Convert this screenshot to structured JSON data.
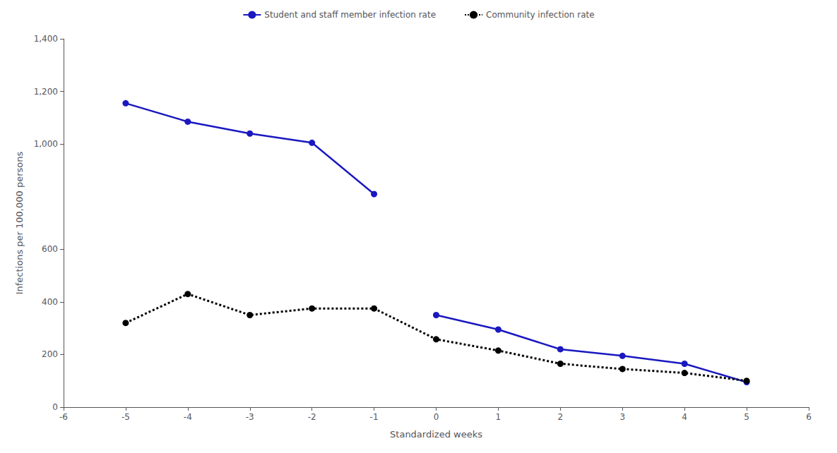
{
  "chart_data": {
    "type": "line",
    "xlabel": "Standardized weeks",
    "ylabel": "Infections per 100,000 persons",
    "series": [
      {
        "name": "Student and staff member infection rate",
        "color": "#1a18c0",
        "line_style": "solid",
        "marker": "circle",
        "x": [
          -5,
          -4,
          -3,
          -2,
          -1
        ],
        "values": [
          1155,
          1085,
          1040,
          1005,
          810
        ]
      },
      {
        "name": "Student and staff member infection rate",
        "color": "#1a18c0",
        "line_style": "solid",
        "marker": "circle",
        "x": [
          0,
          1,
          2,
          3,
          4,
          5
        ],
        "values": [
          350,
          295,
          220,
          195,
          165,
          95
        ]
      },
      {
        "name": "Community infection rate",
        "color": "#000000",
        "line_style": "dotted",
        "marker": "circle",
        "x": [
          -5,
          -4,
          -3,
          -2,
          -1,
          0,
          1,
          2,
          3,
          4,
          5
        ],
        "values": [
          320,
          430,
          350,
          375,
          375,
          258,
          215,
          165,
          145,
          130,
          100
        ]
      }
    ],
    "xlim": [
      -6,
      6
    ],
    "xticks": [
      -6,
      -5,
      -4,
      -3,
      -2,
      -1,
      0,
      1,
      2,
      3,
      4,
      5,
      6
    ],
    "ylim": [
      0,
      1400
    ],
    "yticks": [
      0,
      200,
      400,
      600,
      {
        "value": 1000,
        "label": "1,000"
      },
      {
        "value": 1200,
        "label": "1,200"
      },
      {
        "value": 1400,
        "label": "1,400"
      }
    ],
    "grid": false,
    "legend": "top"
  }
}
